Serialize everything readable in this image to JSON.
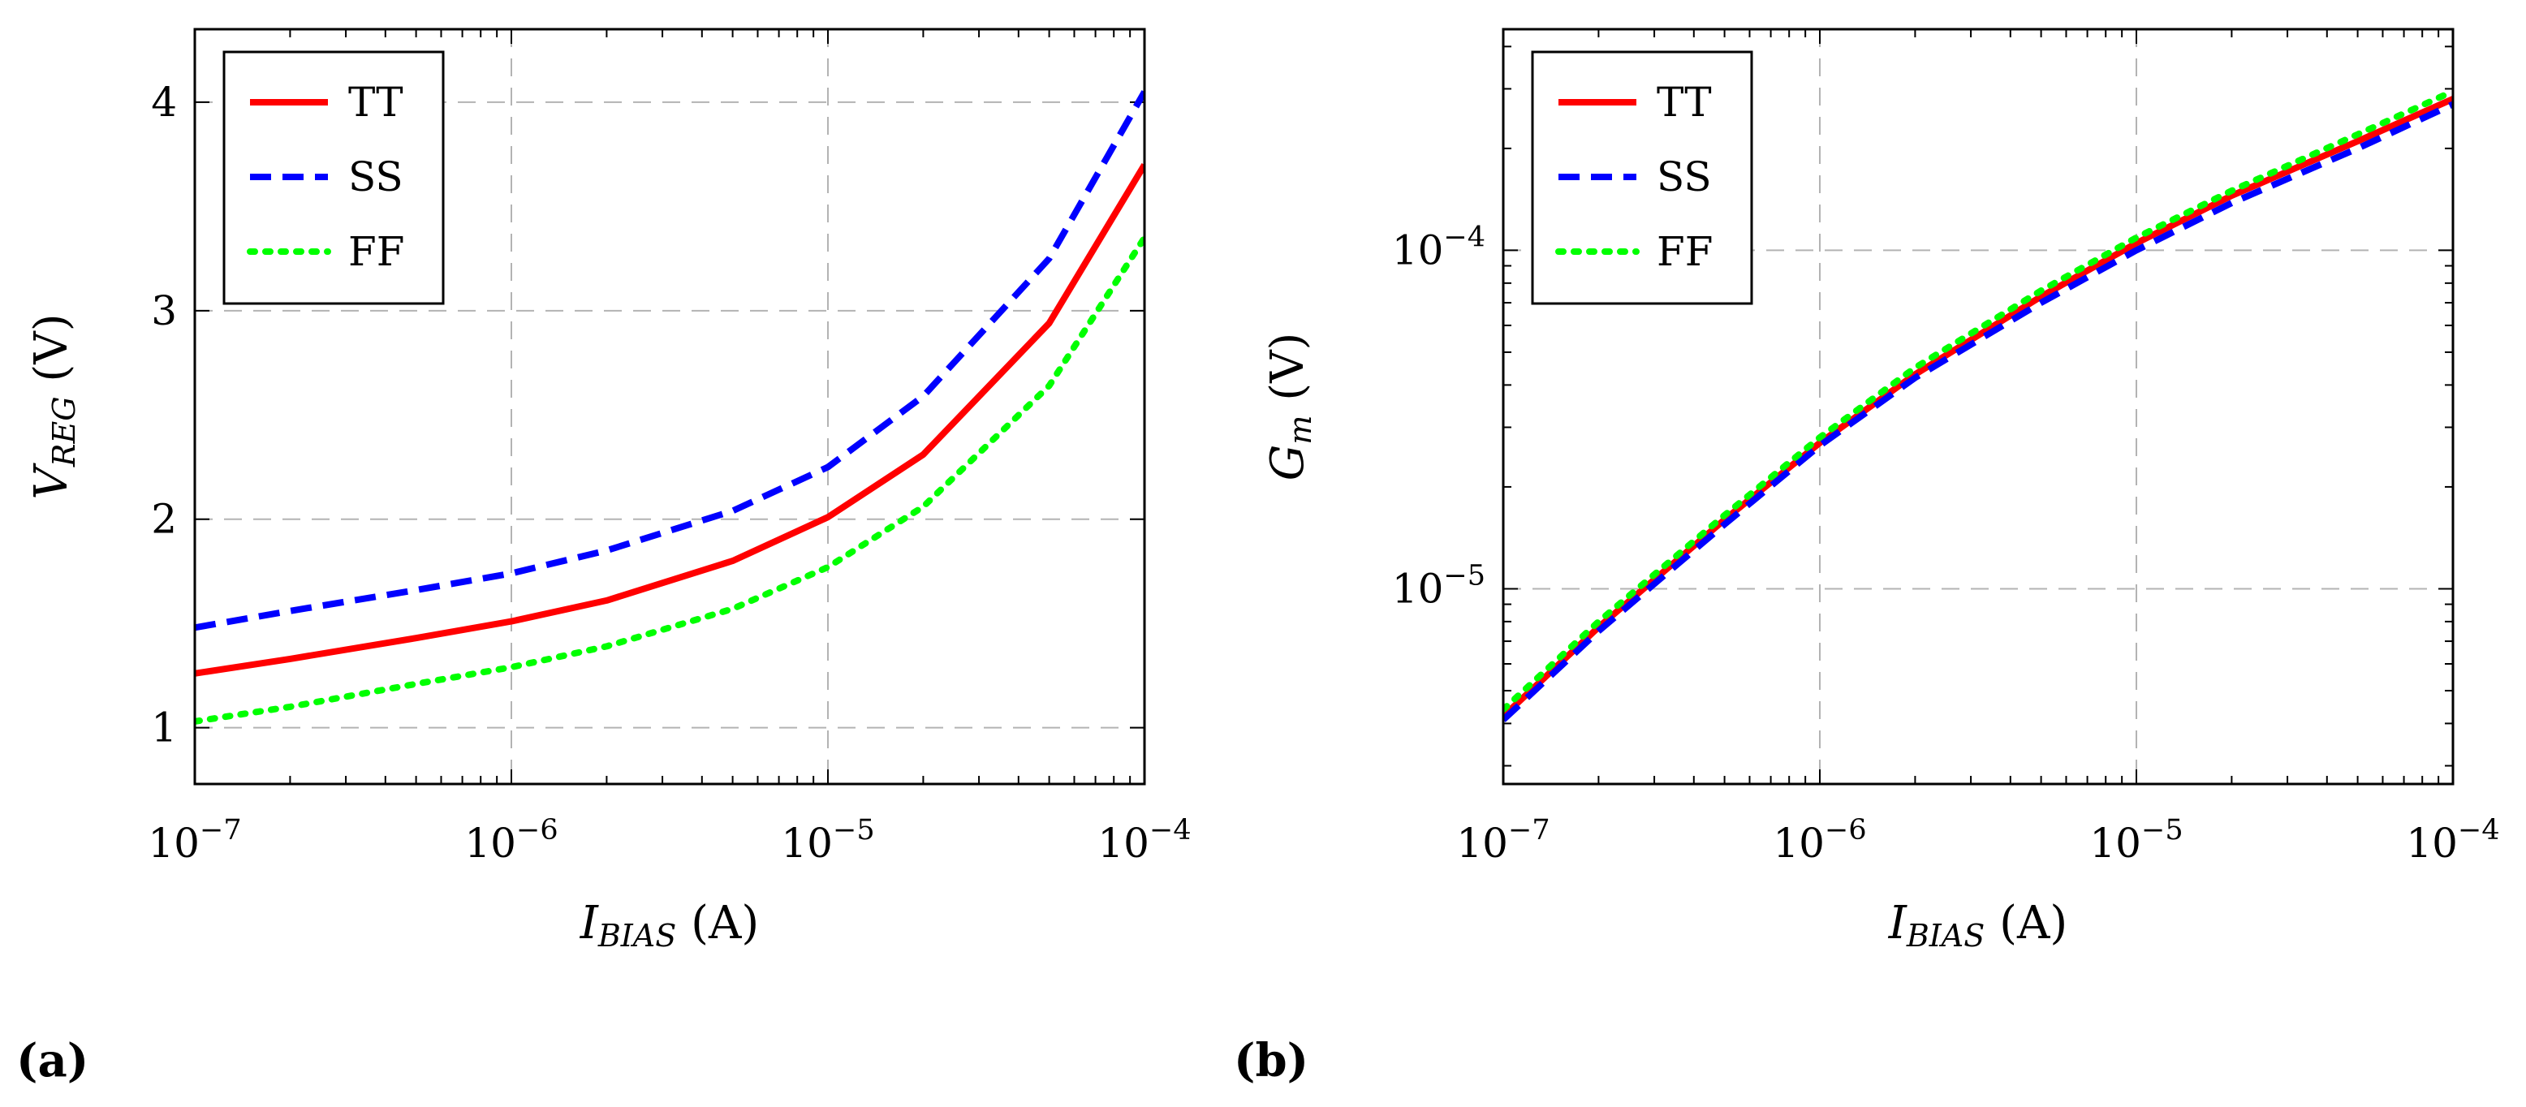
{
  "chart_data": [
    {
      "type": "line",
      "panel_label": "(a)",
      "x_scale": "log",
      "y_scale": "linear",
      "xlim": [
        1e-07,
        0.0001
      ],
      "ylim": [
        0.73,
        4.35
      ],
      "x_ticks": [
        {
          "value": 1e-07,
          "base": "10",
          "exp": "−7"
        },
        {
          "value": 1e-06,
          "base": "10",
          "exp": "−6"
        },
        {
          "value": 1e-05,
          "base": "10",
          "exp": "−5"
        },
        {
          "value": 0.0001,
          "base": "10",
          "exp": "−4"
        }
      ],
      "y_ticks": [
        {
          "value": 1,
          "label": "1"
        },
        {
          "value": 2,
          "label": "2"
        },
        {
          "value": 3,
          "label": "3"
        },
        {
          "value": 4,
          "label": "4"
        }
      ],
      "xlabel": {
        "main": "I",
        "sub": "BIAS",
        "unit": " (A)"
      },
      "ylabel": {
        "main": "V",
        "sub": "REG",
        "unit": " (V)"
      },
      "grid": true,
      "legend": "top-left",
      "series": [
        {
          "name": "TT",
          "color": "#ff0000",
          "style": "solid",
          "x": [
            1e-07,
            2e-07,
            5e-07,
            1e-06,
            2e-06,
            5e-06,
            1e-05,
            2e-05,
            5e-05,
            0.0001
          ],
          "y": [
            1.26,
            1.33,
            1.43,
            1.51,
            1.61,
            1.8,
            2.01,
            2.31,
            2.94,
            3.7
          ]
        },
        {
          "name": "SS",
          "color": "#0000ff",
          "style": "dashed",
          "x": [
            1e-07,
            2e-07,
            5e-07,
            1e-06,
            2e-06,
            5e-06,
            1e-05,
            2e-05,
            5e-05,
            0.0001
          ],
          "y": [
            1.48,
            1.56,
            1.66,
            1.74,
            1.85,
            2.04,
            2.25,
            2.59,
            3.25,
            4.05
          ]
        },
        {
          "name": "FF",
          "color": "#00ff00",
          "style": "dotted",
          "x": [
            1e-07,
            2e-07,
            5e-07,
            1e-06,
            2e-06,
            5e-06,
            1e-05,
            2e-05,
            5e-05,
            0.0001
          ],
          "y": [
            1.03,
            1.1,
            1.21,
            1.29,
            1.39,
            1.57,
            1.77,
            2.06,
            2.64,
            3.35
          ]
        }
      ]
    },
    {
      "type": "line",
      "panel_label": "(b)",
      "x_scale": "log",
      "y_scale": "log",
      "xlim": [
        1e-07,
        0.0001
      ],
      "ylim": [
        2.65e-06,
        0.00045
      ],
      "x_ticks": [
        {
          "value": 1e-07,
          "base": "10",
          "exp": "−7"
        },
        {
          "value": 1e-06,
          "base": "10",
          "exp": "−6"
        },
        {
          "value": 1e-05,
          "base": "10",
          "exp": "−5"
        },
        {
          "value": 0.0001,
          "base": "10",
          "exp": "−4"
        }
      ],
      "y_ticks": [
        {
          "value": 1e-05,
          "base": "10",
          "exp": "−5"
        },
        {
          "value": 0.0001,
          "base": "10",
          "exp": "−4"
        }
      ],
      "xlabel": {
        "main": "I",
        "sub": "BIAS",
        "unit": " (A)"
      },
      "ylabel": {
        "main": "G",
        "sub": "m",
        "unit": " (V)"
      },
      "grid": true,
      "legend": "top-left",
      "series": [
        {
          "name": "TT",
          "color": "#ff0000",
          "style": "solid",
          "x": [
            1e-07,
            2e-07,
            5e-07,
            1e-06,
            2e-06,
            5e-06,
            1e-05,
            2e-05,
            5e-05,
            0.0001
          ],
          "y": [
            4.2e-06,
            7.7e-06,
            1.6e-05,
            2.7e-05,
            4.3e-05,
            7.3e-05,
            0.000105,
            0.000145,
            0.00021,
            0.00028
          ]
        },
        {
          "name": "SS",
          "color": "#0000ff",
          "style": "dashed",
          "x": [
            1e-07,
            2e-07,
            5e-07,
            1e-06,
            2e-06,
            5e-06,
            1e-05,
            2e-05,
            5e-05,
            0.0001
          ],
          "y": [
            4.1e-06,
            7.5e-06,
            1.55e-05,
            2.65e-05,
            4.2e-05,
            7e-05,
            0.0001,
            0.000138,
            0.0002,
            0.00027
          ]
        },
        {
          "name": "FF",
          "color": "#00ff00",
          "style": "dotted",
          "x": [
            1e-07,
            2e-07,
            5e-07,
            1e-06,
            2e-06,
            5e-06,
            1e-05,
            2e-05,
            5e-05,
            0.0001
          ],
          "y": [
            4.4e-06,
            8e-06,
            1.65e-05,
            2.8e-05,
            4.5e-05,
            7.6e-05,
            0.000109,
            0.00015,
            0.00022,
            0.000295
          ]
        }
      ]
    }
  ]
}
